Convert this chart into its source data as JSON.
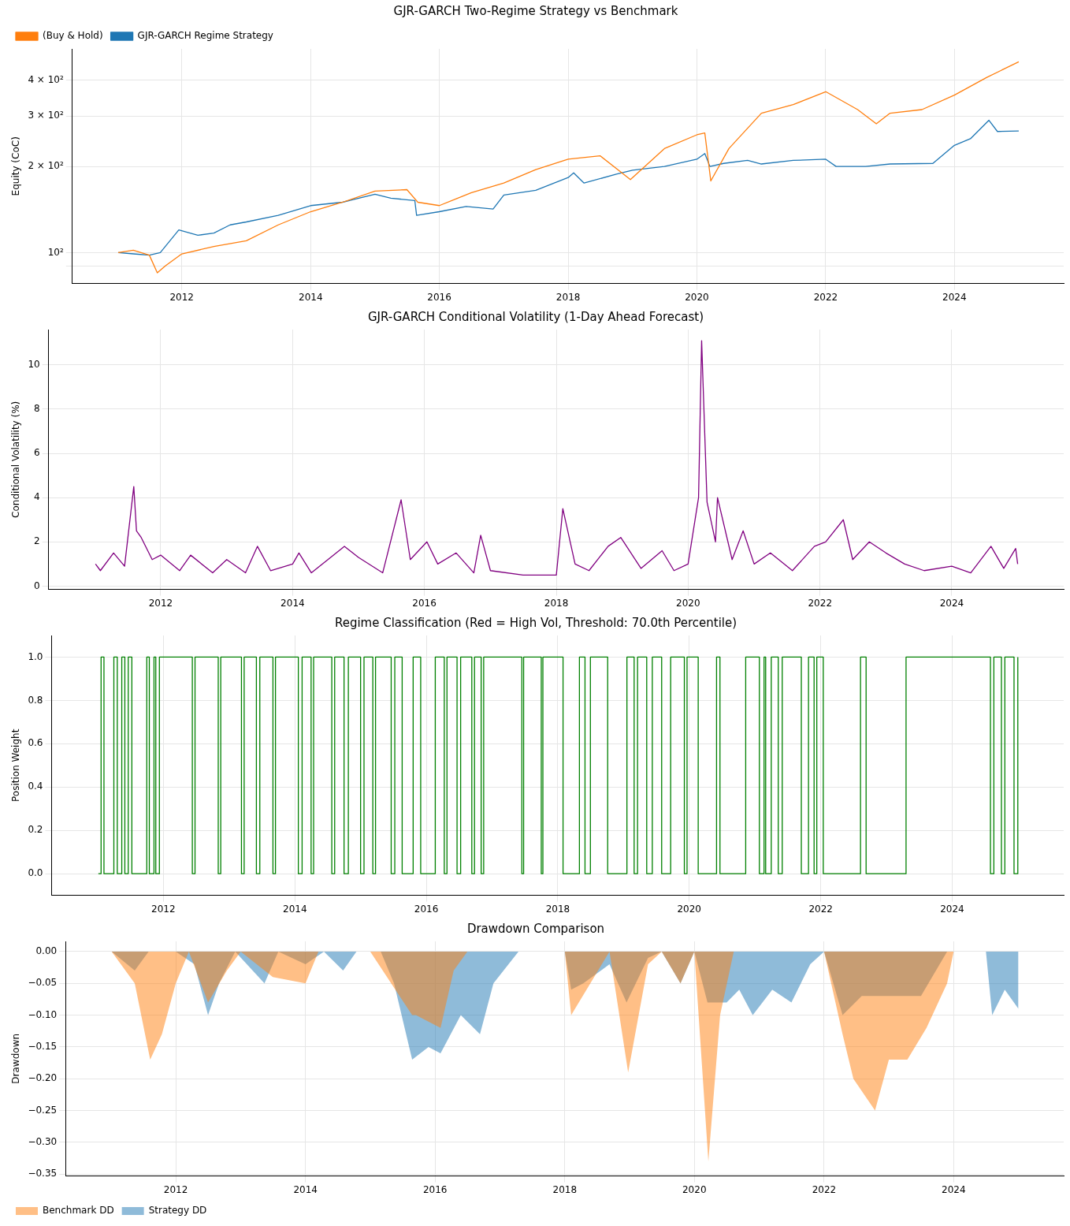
{
  "chart_data": [
    {
      "type": "line",
      "title": "GJR-GARCH Two-Regime Strategy vs Benchmark",
      "ylabel": "Equity (CoC)",
      "log": true,
      "grid": true,
      "legend": "top left",
      "xlim": [
        "2010-04-20",
        "2025-09-12"
      ],
      "xticks": [
        {
          "value": "2012-01-01",
          "label": "2012"
        },
        {
          "value": "2014-01-01",
          "label": "2014"
        },
        {
          "value": "2016-01-01",
          "label": "2016"
        },
        {
          "value": "2018-01-01",
          "label": "2018"
        },
        {
          "value": "2020-01-01",
          "label": "2020"
        },
        {
          "value": "2022-01-01",
          "label": "2022"
        },
        {
          "value": "2024-01-01",
          "label": "2024"
        }
      ],
      "ylim": [
        78,
        515
      ],
      "yticks": [
        {
          "value": 90,
          "label": null
        },
        {
          "value": 100,
          "label": "10²"
        },
        {
          "value": 200,
          "label": "2 × 10²"
        },
        {
          "value": 300,
          "label": "3 × 10²"
        },
        {
          "value": 400,
          "label": "4 × 10²"
        }
      ],
      "series": [
        {
          "name": "GJR-GARCH Regime Strategy",
          "color": "#1f77b4",
          "x": [
            "2011-01-05",
            "2011-04-01",
            "2011-07-01",
            "2011-09-01",
            "2011-12-15",
            "2012-04-01",
            "2012-07-01",
            "2012-10-01",
            "2013-01-01",
            "2013-07-01",
            "2014-01-01",
            "2014-07-01",
            "2015-01-01",
            "2015-04-01",
            "2015-08-15",
            "2015-08-25",
            "2016-01-01",
            "2016-06-01",
            "2016-11-01",
            "2017-01-01",
            "2017-07-01",
            "2018-01-01",
            "2018-02-01",
            "2018-04-01",
            "2018-10-01",
            "2019-01-01",
            "2019-07-01",
            "2020-01-01",
            "2020-02-15",
            "2020-03-15",
            "2020-06-01",
            "2020-10-15",
            "2021-01-01",
            "2021-07-01",
            "2022-01-01",
            "2022-03-01",
            "2022-08-15",
            "2023-01-01",
            "2023-09-01",
            "2024-01-01",
            "2024-04-01",
            "2024-07-15",
            "2024-09-01",
            "2024-12-31"
          ],
          "values": [
            100,
            99,
            98,
            100,
            120,
            115,
            117,
            125,
            128,
            135,
            146,
            150,
            160,
            155,
            152,
            135,
            139,
            145,
            142,
            159,
            165,
            183,
            190,
            175,
            188,
            194,
            200,
            212,
            222,
            200,
            205,
            210,
            204,
            210,
            212,
            200,
            200,
            204,
            205,
            237,
            250,
            290,
            265,
            266
          ]
        },
        {
          "name": "(Buy & Hold)",
          "color": "#ff7f0e",
          "x": [
            "2011-01-05",
            "2011-04-01",
            "2011-07-01",
            "2011-08-15",
            "2011-10-01",
            "2012-01-01",
            "2012-07-01",
            "2013-01-01",
            "2013-07-01",
            "2014-01-01",
            "2014-07-01",
            "2015-01-01",
            "2015-07-01",
            "2015-09-01",
            "2016-01-01",
            "2016-07-01",
            "2017-01-01",
            "2017-07-01",
            "2018-01-01",
            "2018-07-01",
            "2018-12-20",
            "2019-07-01",
            "2020-01-01",
            "2020-02-15",
            "2020-03-20",
            "2020-07-01",
            "2021-01-01",
            "2021-07-01",
            "2022-01-01",
            "2022-07-01",
            "2022-10-15",
            "2023-01-01",
            "2023-07-01",
            "2024-01-01",
            "2024-07-01",
            "2024-12-31"
          ],
          "values": [
            100,
            102,
            98,
            85,
            90,
            99,
            105,
            110,
            125,
            139,
            150,
            164,
            166,
            150,
            146,
            162,
            175,
            195,
            212,
            218,
            180,
            231,
            258,
            262,
            178,
            231,
            307,
            329,
            365,
            316,
            282,
            307,
            316,
            355,
            409,
            464
          ]
        }
      ]
    },
    {
      "type": "line",
      "title": "GJR-GARCH Conditional Volatility (1-Day Ahead Forecast)",
      "ylabel": "Conditional Volatility (%)",
      "grid": true,
      "xlim": [
        "2010-04-20",
        "2025-09-12"
      ],
      "xticks": [
        {
          "value": "2012-01-01",
          "label": "2012"
        },
        {
          "value": "2014-01-01",
          "label": "2014"
        },
        {
          "value": "2016-01-01",
          "label": "2016"
        },
        {
          "value": "2018-01-01",
          "label": "2018"
        },
        {
          "value": "2020-01-01",
          "label": "2020"
        },
        {
          "value": "2022-01-01",
          "label": "2022"
        },
        {
          "value": "2024-01-01",
          "label": "2024"
        }
      ],
      "ylim": [
        -0.15,
        11.6
      ],
      "yticks": [
        0,
        2,
        4,
        6,
        8,
        10
      ],
      "series": [
        {
          "color": "#800080",
          "x": [
            "2011-01-05",
            "2011-02-01",
            "2011-04-15",
            "2011-06-15",
            "2011-08-05",
            "2011-08-20",
            "2011-09-15",
            "2011-11-15",
            "2012-01-01",
            "2012-04-15",
            "2012-06-15",
            "2012-10-15",
            "2013-01-01",
            "2013-04-15",
            "2013-06-20",
            "2013-09-01",
            "2014-01-01",
            "2014-02-05",
            "2014-04-15",
            "2014-10-15",
            "2015-01-01",
            "2015-05-15",
            "2015-08-25",
            "2015-10-15",
            "2016-01-15",
            "2016-03-15",
            "2016-06-25",
            "2016-10-01",
            "2016-11-08",
            "2017-01-01",
            "2017-07-01",
            "2018-01-01",
            "2018-02-06",
            "2018-04-15",
            "2018-07-01",
            "2018-10-15",
            "2018-12-24",
            "2019-04-15",
            "2019-08-10",
            "2019-10-15",
            "2020-01-01",
            "2020-02-28",
            "2020-03-16",
            "2020-04-15",
            "2020-06-01",
            "2020-06-12",
            "2020-09-01",
            "2020-11-01",
            "2021-01-01",
            "2021-04-01",
            "2021-08-01",
            "2021-12-01",
            "2022-02-01",
            "2022-05-10",
            "2022-07-01",
            "2022-10-01",
            "2023-01-01",
            "2023-04-15",
            "2023-08-01",
            "2024-01-01",
            "2024-04-15",
            "2024-08-05",
            "2024-10-15",
            "2024-12-20",
            "2024-12-31"
          ],
          "values": [
            1.0,
            0.7,
            1.5,
            0.9,
            4.5,
            2.5,
            2.2,
            1.2,
            1.4,
            0.7,
            1.4,
            0.6,
            1.2,
            0.6,
            1.8,
            0.7,
            1.0,
            1.5,
            0.6,
            1.8,
            1.3,
            0.6,
            3.9,
            1.2,
            2.0,
            1.0,
            1.5,
            0.6,
            2.3,
            0.7,
            0.5,
            0.5,
            3.5,
            1.0,
            0.7,
            1.8,
            2.2,
            0.8,
            1.6,
            0.7,
            1.0,
            4.0,
            11.1,
            3.8,
            2.0,
            4.0,
            1.2,
            2.5,
            1.0,
            1.5,
            0.7,
            1.8,
            2.0,
            3.0,
            1.2,
            2.0,
            1.5,
            1.0,
            0.7,
            0.9,
            0.6,
            1.8,
            0.8,
            1.7,
            1.0
          ]
        }
      ]
    },
    {
      "type": "step",
      "title": "Regime Classification (Red = High Vol, Threshold: 70.0th Percentile)",
      "ylabel": "Position Weight",
      "grid": true,
      "xlim": [
        "2010-04-20",
        "2025-09-12"
      ],
      "xticks": [
        {
          "value": "2012-01-01",
          "label": "2012"
        },
        {
          "value": "2014-01-01",
          "label": "2014"
        },
        {
          "value": "2016-01-01",
          "label": "2016"
        },
        {
          "value": "2018-01-01",
          "label": "2018"
        },
        {
          "value": "2020-01-01",
          "label": "2020"
        },
        {
          "value": "2022-01-01",
          "label": "2022"
        },
        {
          "value": "2024-01-01",
          "label": "2024"
        }
      ],
      "ylim": [
        -0.1,
        1.1
      ],
      "yticks": [
        {
          "value": 0,
          "label": "0.0"
        },
        {
          "value": 0.2,
          "label": "0.2"
        },
        {
          "value": 0.4,
          "label": "0.4"
        },
        {
          "value": 0.6,
          "label": "0.6"
        },
        {
          "value": 0.8,
          "label": "0.8"
        },
        {
          "value": 1,
          "label": "1.0"
        }
      ],
      "series": [
        {
          "color": "#008000",
          "x": [
            "2011-01-05",
            "2011-01-20",
            "2011-02-05",
            "2011-04-01",
            "2011-04-20",
            "2011-05-15",
            "2011-06-01",
            "2011-06-20",
            "2011-07-10",
            "2011-10-01",
            "2011-10-15",
            "2011-11-10",
            "2011-11-20",
            "2011-12-10",
            "2012-06-10",
            "2012-06-25",
            "2012-11-01",
            "2012-11-15",
            "2013-03-10",
            "2013-03-25",
            "2013-06-01",
            "2013-06-20",
            "2013-09-01",
            "2013-09-15",
            "2014-01-20",
            "2014-02-10",
            "2014-04-01",
            "2014-04-15",
            "2014-07-25",
            "2014-08-10",
            "2014-10-01",
            "2014-10-25",
            "2015-01-01",
            "2015-01-20",
            "2015-03-10",
            "2015-03-25",
            "2015-06-20",
            "2015-07-10",
            "2015-08-20",
            "2015-10-20",
            "2015-12-01",
            "2016-02-20",
            "2016-04-10",
            "2016-04-25",
            "2016-06-20",
            "2016-07-10",
            "2016-09-10",
            "2016-09-25",
            "2016-11-01",
            "2016-11-15",
            "2017-06-15",
            "2017-06-25",
            "2017-10-01",
            "2017-10-10",
            "2018-01-30",
            "2018-05-01",
            "2018-06-01",
            "2018-07-01",
            "2018-10-05",
            "2019-01-20",
            "2019-03-01",
            "2019-03-20",
            "2019-05-10",
            "2019-06-10",
            "2019-08-01",
            "2019-09-20",
            "2019-12-05",
            "2019-12-20",
            "2020-02-20",
            "2020-06-01",
            "2020-06-20",
            "2020-11-10",
            "2021-01-25",
            "2021-02-20",
            "2021-03-01",
            "2021-04-01",
            "2021-05-10",
            "2021-06-01",
            "2021-09-15",
            "2021-10-25",
            "2021-11-25",
            "2021-12-10",
            "2022-01-15",
            "2022-08-10",
            "2022-09-10",
            "2023-04-20",
            "2024-08-01",
            "2024-08-20",
            "2024-10-01",
            "2024-10-20",
            "2024-12-10",
            "2024-12-31"
          ],
          "values": [
            0,
            1,
            0,
            1,
            0,
            1,
            0,
            1,
            0,
            1,
            0,
            1,
            0,
            1,
            0,
            1,
            0,
            1,
            0,
            1,
            0,
            1,
            0,
            1,
            0,
            1,
            0,
            1,
            0,
            1,
            0,
            1,
            0,
            1,
            0,
            1,
            0,
            1,
            0,
            1,
            0,
            1,
            0,
            1,
            0,
            1,
            0,
            1,
            0,
            1,
            0,
            1,
            0,
            1,
            0,
            1,
            0,
            1,
            0,
            1,
            0,
            1,
            0,
            1,
            0,
            1,
            0,
            1,
            0,
            1,
            0,
            1,
            0,
            1,
            0,
            1,
            0,
            1,
            0,
            1,
            0,
            1,
            0,
            1,
            0,
            1,
            0,
            1,
            0,
            1,
            0,
            1
          ]
        }
      ]
    },
    {
      "type": "area",
      "title": "Drawdown Comparison",
      "ylabel": "Drawdown",
      "grid": true,
      "legend": "bottom left",
      "xlim": [
        "2010-04-20",
        "2025-09-12"
      ],
      "xticks": [
        {
          "value": "2012-01-01",
          "label": "2012"
        },
        {
          "value": "2014-01-01",
          "label": "2014"
        },
        {
          "value": "2016-01-01",
          "label": "2016"
        },
        {
          "value": "2018-01-01",
          "label": "2018"
        },
        {
          "value": "2020-01-01",
          "label": "2020"
        },
        {
          "value": "2022-01-01",
          "label": "2022"
        },
        {
          "value": "2024-01-01",
          "label": "2024"
        }
      ],
      "ylim": [
        -0.353,
        0.016
      ],
      "yticks": [
        {
          "value": 0,
          "label": "0.00"
        },
        {
          "value": -0.05,
          "label": "−0.05"
        },
        {
          "value": -0.1,
          "label": "−0.10"
        },
        {
          "value": -0.15,
          "label": "−0.15"
        },
        {
          "value": -0.2,
          "label": "−0.20"
        },
        {
          "value": -0.25,
          "label": "−0.25"
        },
        {
          "value": -0.3,
          "label": "−0.30"
        },
        {
          "value": -0.35,
          "label": "−0.35"
        }
      ],
      "series": [
        {
          "name": "Strategy DD",
          "color": "#1f77b4",
          "x": [
            "2011-01-05",
            "2011-05-15",
            "2011-08-01",
            "2012-01-01",
            "2012-04-15",
            "2012-07-01",
            "2012-09-01",
            "2012-12-01",
            "2013-05-15",
            "2013-08-01",
            "2014-01-01",
            "2014-04-15",
            "2014-08-01",
            "2014-10-15",
            "2015-03-01",
            "2015-05-15",
            "2015-08-25",
            "2015-11-25",
            "2016-02-01",
            "2016-05-25",
            "2016-09-10",
            "2016-11-25",
            "2017-04-15",
            "2018-01-01",
            "2018-02-06",
            "2018-04-15",
            "2018-09-10",
            "2018-12-15",
            "2019-04-15",
            "2019-07-01",
            "2019-10-15",
            "2020-01-01",
            "2020-03-15",
            "2020-07-01",
            "2020-09-10",
            "2020-11-25",
            "2021-03-15",
            "2021-07-01",
            "2021-10-15",
            "2022-01-01",
            "2022-04-15",
            "2022-08-01",
            "2023-01-01",
            "2023-07-01",
            "2023-11-25",
            "2024-01-01",
            "2024-07-01",
            "2024-08-05",
            "2024-10-15",
            "2024-12-31"
          ],
          "values": [
            0,
            -0.03,
            0,
            0,
            -0.02,
            -0.1,
            -0.05,
            0,
            -0.05,
            0,
            -0.02,
            0,
            -0.03,
            0,
            0,
            -0.05,
            -0.17,
            -0.15,
            -0.16,
            -0.1,
            -0.13,
            -0.05,
            0,
            0,
            -0.06,
            -0.05,
            -0.02,
            -0.08,
            -0.01,
            0,
            -0.05,
            0,
            -0.08,
            -0.08,
            -0.06,
            -0.1,
            -0.06,
            -0.08,
            -0.02,
            0,
            -0.1,
            -0.07,
            -0.07,
            -0.07,
            0,
            0,
            0,
            -0.1,
            -0.06,
            -0.09
          ]
        },
        {
          "name": "Benchmark DD",
          "color": "#ff7f0e",
          "x": [
            "2011-01-05",
            "2011-05-15",
            "2011-08-10",
            "2011-10-15",
            "2012-01-01",
            "2012-03-15",
            "2012-07-01",
            "2012-10-15",
            "2013-01-01",
            "2013-07-01",
            "2014-01-01",
            "2014-03-15",
            "2015-01-01",
            "2015-08-25",
            "2015-09-15",
            "2016-02-01",
            "2016-04-15",
            "2016-07-01",
            "2018-01-01",
            "2018-02-06",
            "2018-05-25",
            "2018-09-10",
            "2018-12-24",
            "2019-04-15",
            "2019-07-01",
            "2019-10-15",
            "2020-01-01",
            "2020-03-20",
            "2020-05-25",
            "2020-08-10",
            "2022-01-01",
            "2022-04-15",
            "2022-06-15",
            "2022-10-15",
            "2023-01-01",
            "2023-04-15",
            "2023-08-01",
            "2023-11-25",
            "2024-01-01",
            "2024-12-31"
          ],
          "values": [
            0,
            -0.05,
            -0.17,
            -0.13,
            -0.05,
            0,
            -0.08,
            -0.03,
            0,
            -0.04,
            -0.05,
            0,
            0,
            -0.1,
            -0.1,
            -0.12,
            -0.03,
            0,
            0,
            -0.1,
            -0.05,
            0,
            -0.19,
            -0.02,
            0,
            -0.05,
            0,
            -0.33,
            -0.1,
            0,
            0,
            -0.13,
            -0.2,
            -0.25,
            -0.17,
            -0.17,
            -0.12,
            -0.05,
            0,
            0
          ]
        }
      ]
    }
  ]
}
